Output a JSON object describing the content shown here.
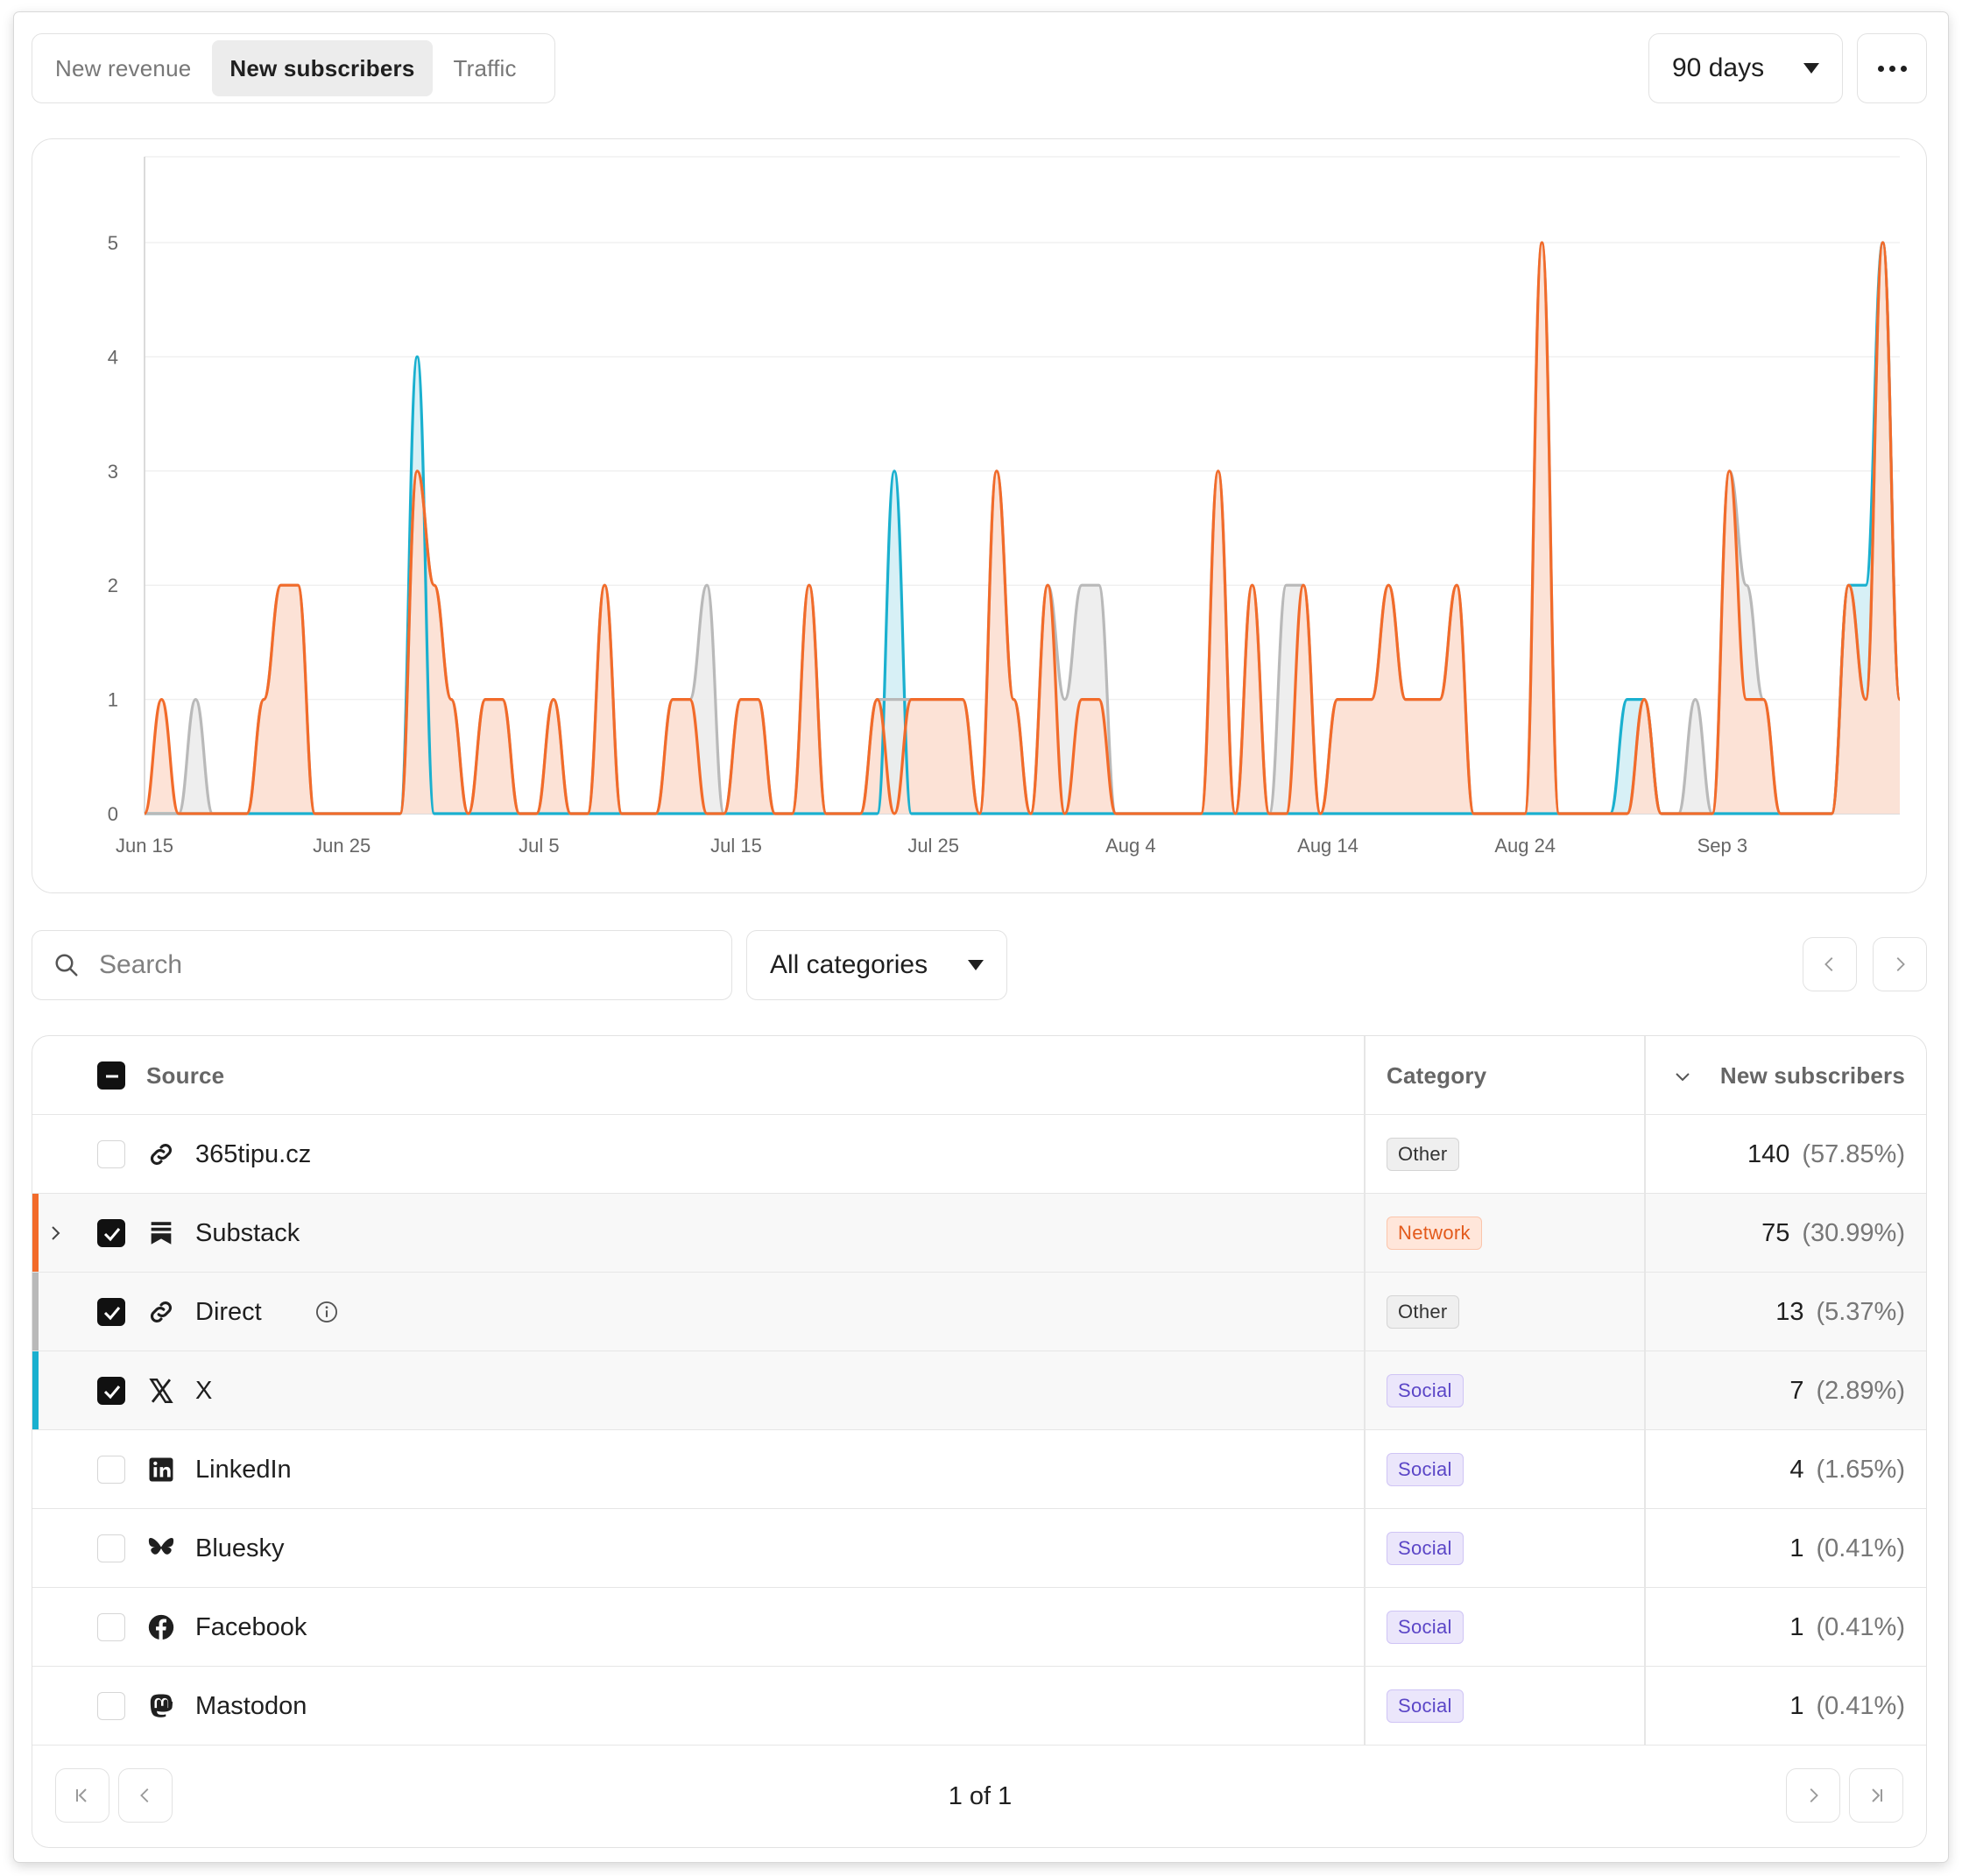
{
  "tabs": [
    {
      "label": "New revenue",
      "active": false
    },
    {
      "label": "New subscribers",
      "active": true
    },
    {
      "label": "Traffic",
      "active": false
    }
  ],
  "range": {
    "label": "90 days"
  },
  "more_icon": "more-horizontal-icon",
  "chart_data": {
    "type": "area",
    "x_ticks": [
      "Jun 15",
      "Jun 25",
      "Jul 5",
      "Jul 15",
      "Jul 25",
      "Aug 4",
      "Aug 14",
      "Aug 24",
      "Sep 3"
    ],
    "x_domain": [
      "Jun 15",
      "Sep 12"
    ],
    "ylim": [
      0,
      5
    ],
    "y_ticks": [
      0,
      1,
      2,
      3,
      4,
      5
    ],
    "grid": true,
    "legend": "none",
    "series": [
      {
        "color": "#f26b2a",
        "fill": "#fde0d3",
        "values": [
          0,
          1,
          0,
          0,
          0,
          0,
          0,
          1,
          2,
          2,
          0,
          0,
          0,
          0,
          0,
          0,
          3,
          2,
          1,
          0,
          1,
          1,
          0,
          0,
          1,
          0,
          0,
          2,
          0,
          0,
          0,
          1,
          1,
          0,
          0,
          1,
          1,
          0,
          0,
          2,
          0,
          0,
          0,
          1,
          0,
          1,
          1,
          1,
          1,
          0,
          3,
          1,
          0,
          2,
          0,
          1,
          1,
          0,
          0,
          0,
          0,
          0,
          0,
          3,
          0,
          2,
          0,
          0,
          2,
          0,
          1,
          1,
          1,
          2,
          1,
          1,
          1,
          2,
          0,
          0,
          0,
          0,
          5,
          0,
          0,
          0,
          0,
          0,
          1,
          0,
          0,
          0,
          0,
          3,
          1,
          1,
          0,
          0,
          0,
          0,
          2,
          1,
          5,
          1
        ]
      },
      {
        "color": "#b9b9b9",
        "fill": "#ececec",
        "values": [
          0,
          0,
          0,
          1,
          0,
          0,
          0,
          1,
          2,
          2,
          0,
          0,
          0,
          0,
          0,
          0,
          3,
          2,
          1,
          0,
          1,
          1,
          0,
          0,
          1,
          0,
          0,
          2,
          0,
          0,
          0,
          1,
          1,
          2,
          0,
          1,
          1,
          0,
          0,
          2,
          0,
          0,
          0,
          1,
          1,
          1,
          1,
          1,
          1,
          0,
          3,
          1,
          0,
          2,
          1,
          2,
          2,
          0,
          0,
          0,
          0,
          0,
          0,
          3,
          0,
          2,
          0,
          2,
          2,
          0,
          1,
          1,
          1,
          2,
          1,
          1,
          1,
          2,
          0,
          0,
          0,
          0,
          5,
          0,
          0,
          0,
          0,
          0,
          1,
          0,
          0,
          1,
          0,
          3,
          2,
          1,
          0,
          0,
          0,
          0,
          2,
          1,
          5,
          1
        ]
      },
      {
        "color": "#1ab0cf",
        "fill": "#d3eef5",
        "values": [
          0,
          0,
          0,
          0,
          0,
          0,
          0,
          0,
          0,
          0,
          0,
          0,
          0,
          0,
          0,
          0,
          4,
          0,
          0,
          0,
          0,
          0,
          0,
          0,
          0,
          0,
          0,
          0,
          0,
          0,
          0,
          0,
          0,
          0,
          0,
          0,
          0,
          0,
          0,
          0,
          0,
          0,
          0,
          0,
          3,
          0,
          0,
          0,
          0,
          0,
          0,
          0,
          0,
          0,
          0,
          0,
          0,
          0,
          0,
          0,
          0,
          0,
          0,
          0,
          0,
          0,
          0,
          0,
          0,
          0,
          0,
          0,
          0,
          0,
          0,
          0,
          0,
          0,
          0,
          0,
          0,
          0,
          0,
          0,
          0,
          0,
          0,
          1,
          1,
          0,
          0,
          0,
          0,
          0,
          0,
          0,
          0,
          0,
          0,
          0,
          2,
          2,
          5,
          1
        ]
      }
    ]
  },
  "filters": {
    "search_placeholder": "Search",
    "category_label": "All categories"
  },
  "table": {
    "headers": {
      "source": "Source",
      "category": "Category",
      "value": "New subscribers"
    },
    "rows": [
      {
        "source": "365tipu.cz",
        "icon": "link-icon",
        "category": "Other",
        "value": "140",
        "pct": "(57.85%)",
        "checked": false,
        "accent": ""
      },
      {
        "source": "Substack",
        "icon": "substack-icon",
        "category": "Network",
        "value": "75",
        "pct": "(30.99%)",
        "checked": true,
        "accent": "#f26b2a",
        "expandable": true
      },
      {
        "source": "Direct",
        "icon": "link-icon",
        "category": "Other",
        "value": "13",
        "pct": "(5.37%)",
        "checked": true,
        "accent": "#b9b9b9",
        "info": true
      },
      {
        "source": "X",
        "icon": "x-logo-icon",
        "category": "Social",
        "value": "7",
        "pct": "(2.89%)",
        "checked": true,
        "accent": "#1ab0cf"
      },
      {
        "source": "LinkedIn",
        "icon": "linkedin-icon",
        "category": "Social",
        "value": "4",
        "pct": "(1.65%)",
        "checked": false,
        "accent": ""
      },
      {
        "source": "Bluesky",
        "icon": "bluesky-icon",
        "category": "Social",
        "value": "1",
        "pct": "(0.41%)",
        "checked": false,
        "accent": ""
      },
      {
        "source": "Facebook",
        "icon": "facebook-icon",
        "category": "Social",
        "value": "1",
        "pct": "(0.41%)",
        "checked": false,
        "accent": ""
      },
      {
        "source": "Mastodon",
        "icon": "mastodon-icon",
        "category": "Social",
        "value": "1",
        "pct": "(0.41%)",
        "checked": false,
        "accent": ""
      }
    ],
    "pagination": "1 of 1"
  }
}
